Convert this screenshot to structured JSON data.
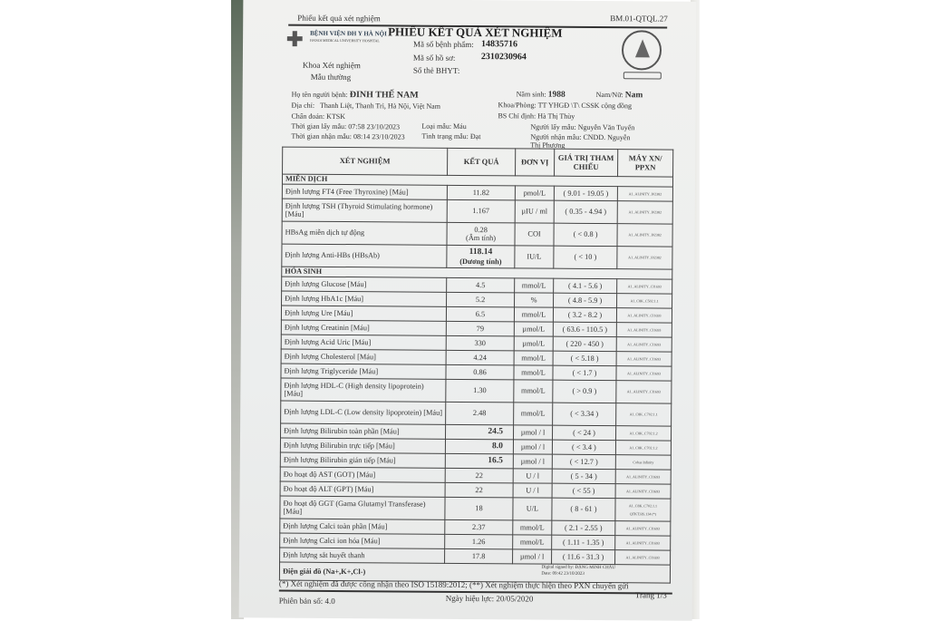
{
  "header": {
    "form_title": "Phiếu kết quả xét nghiệm",
    "form_code": "BM.01-QTQL.27",
    "main_title": "PHIẾU KẾT QUẢ XÉT NGHIỆM"
  },
  "hospital": {
    "name": "BỆNH VIỆN ĐH Y HÀ NỘI",
    "name_en": "HANOI MEDICAL UNIVERSITY HOSPITAL",
    "department": "Khoa Xét nghiệm",
    "sample_type_label": "Mẫu thường"
  },
  "ids": {
    "specimen_label": "Mã số bệnh phẩm:",
    "specimen": "14835716",
    "record_label": "Mã số hồ sơ:",
    "record": "2310230964",
    "insurance_label": "Số thẻ BHYT:",
    "insurance": ""
  },
  "patient": {
    "name_label": "Họ tên người bệnh:",
    "name": "ĐINH THẾ NAM",
    "birth_label": "Năm sinh:",
    "birth": "1988",
    "sex_label": "Nam/Nữ:",
    "sex": "Nam",
    "address_label": "Địa chỉ:",
    "address": "Thanh Liệt, Thanh Trì, Hà Nội, Việt Nam",
    "ward_label": "Khoa/Phòng:",
    "ward": "TT YHGĐ \\T\\ CSSK cộng đồng",
    "diagnosis_label": "Chẩn đoán:",
    "diagnosis": "KTSK",
    "doctor_label": "BS Chỉ định:",
    "doctor": "Hà Thị Thùy",
    "collect_time_label": "Thời gian lấy mẫu:",
    "collect_time": "07:58 23/10/2023",
    "sample_label": "Loại mẫu:",
    "sample": "Máu",
    "collector_label": "Người lấy mẫu:",
    "collector": "Nguyễn Văn Tuyến",
    "receive_time_label": "Thời gian nhận mẫu:",
    "receive_time": "08:14 23/10/2023",
    "status_label": "Tình trạng mẫu:",
    "status": "Đạt",
    "receiver_label": "Người nhận mẫu:",
    "receiver": "CNDD. Nguyễn Thị Phương"
  },
  "table": {
    "columns": [
      "XÉT NGHIỆM",
      "KẾT QUẢ",
      "ĐƠN VỊ",
      "GIÁ TRỊ THAM CHIẾU",
      "MÁY XN/ PPXN"
    ],
    "sections": [
      {
        "title": "MIỄN DỊCH",
        "rows": [
          {
            "test": "Định lượng FT4 (Free Thyroxine) [Máu]",
            "result": "11.82",
            "unit": "pmol/L",
            "ref": "( 9.01 - 19.05 )",
            "machine": "A1_ALINITY_I02382"
          },
          {
            "test": "Định lượng TSH (Thyroid Stimulating hormone) [Máu]",
            "result": "1.167",
            "unit": "µIU / ml",
            "ref": "( 0.35 - 4.94 )",
            "machine": "A1_ALINITY_I02382",
            "tall": true
          },
          {
            "test": "HBsAg miễn dịch tự động",
            "result": "0.28",
            "result_note": "(Âm tính)",
            "unit": "COI",
            "ref": "( < 0.8 )",
            "machine": "A1_ALINITY_I02382",
            "tall": true
          },
          {
            "test": "Định lượng Anti-HBs (HBsAb)",
            "result": "118.14",
            "result_note": "(Dương tính)",
            "unit": "IU/L",
            "ref": "( < 10 )",
            "machine": "A1_ALINITY_I02382",
            "tall": true,
            "bold": true
          }
        ]
      },
      {
        "title": "HÓA SINH",
        "rows": [
          {
            "test": "Định lượng Glucose [Máu]",
            "result": "4.5",
            "unit": "mmol/L",
            "ref": "( 4.1 - 5.6 )",
            "machine": "A1_ALINITY_CI1693"
          },
          {
            "test": "Định lượng HbA1c [Máu]",
            "result": "5.2",
            "unit": "%",
            "ref": "( 4.8 - 5.9 )",
            "machine": "A1_C8K_C502.1.1"
          },
          {
            "test": "Định lượng Ure [Máu]",
            "result": "6.5",
            "unit": "mmol/L",
            "ref": "( 3.2 - 8.2 )",
            "machine": "A1_ALINITY_CI1693"
          },
          {
            "test": "Định lượng Creatinin [Máu]",
            "result": "79",
            "unit": "µmol/L",
            "ref": "( 63.6 - 110.5 )",
            "machine": "A1_ALINITY_CI1693"
          },
          {
            "test": "Định lượng Acid Uric [Máu]",
            "result": "330",
            "unit": "µmol/L",
            "ref": "( 220 - 450 )",
            "machine": "A1_ALINITY_CI1693"
          },
          {
            "test": "Định lượng Cholesterol [Máu]",
            "result": "4.24",
            "unit": "mmol/L",
            "ref": "( < 5.18 )",
            "machine": "A1_ALINITY_CI1693"
          },
          {
            "test": "Định lượng Triglyceride [Máu]",
            "result": "0.86",
            "unit": "mmol/L",
            "ref": "( < 1.7 )",
            "machine": "A1_ALINITY_CI1693"
          },
          {
            "test": "Định lượng HDL-C (High density lipoprotein) [Máu]",
            "result": "1.30",
            "unit": "mmol/L",
            "ref": "( > 0.9 )",
            "machine": "A1_ALINITY_CI1693",
            "tall": true
          },
          {
            "test": "Định lượng LDL-C (Low density lipoprotein) [Máu]",
            "result": "2.48",
            "unit": "mmol/L",
            "ref": "( < 3.34 )",
            "machine": "A1_C8K_C702.1.1",
            "tall": true
          },
          {
            "test": "Định lượng Bilirubin toàn phần [Máu]",
            "result": "24.5",
            "unit": "µmol / l",
            "ref": "( < 24 )",
            "machine": "A1_C8K_C702.1.2",
            "bold": true
          },
          {
            "test": "Định lượng Bilirubin trực tiếp [Máu]",
            "result": "8.0",
            "unit": "µmol / l",
            "ref": "( < 3.4 )",
            "machine": "A1_C8K_C702.1.2",
            "bold": true
          },
          {
            "test": "Định lượng Bilirubin gián tiếp [Máu]",
            "result": "16.5",
            "unit": "µmol / l",
            "ref": "( < 12.7 )",
            "machine": "Cobas Infinity",
            "bold": true
          },
          {
            "test": "Đo hoạt độ AST (GOT) [Máu]",
            "result": "22",
            "unit": "U / l",
            "ref": "( 5 - 34 )",
            "machine": "A1_ALINITY_CI1693"
          },
          {
            "test": "Đo hoạt độ ALT (GPT) [Máu]",
            "result": "22",
            "unit": "U / l",
            "ref": "( < 55 )",
            "machine": "A1_ALINITY_CI1693"
          },
          {
            "test": "Đo hoạt độ GGT (Gama Glutamyl Transferase) [Máu]",
            "result": "18",
            "unit": "U/L",
            "ref": "( 8 - 61 )",
            "machine": "A1_C8K_C702.1.1 QTKT.HS.134 (*)",
            "tall": true
          },
          {
            "test": "Định lượng Calci toàn phần [Máu]",
            "result": "2.37",
            "unit": "mmol/L",
            "ref": "( 2.1 - 2.55 )",
            "machine": "A1_ALINITY_CI1693"
          },
          {
            "test": "Định lượng Calci ion hóa [Máu]",
            "result": "1.26",
            "unit": "mmol/L",
            "ref": "( 1.11 - 1.35 )",
            "machine": "A1_ALINITY_CI1693"
          },
          {
            "test": "Định lượng sắt huyết thanh",
            "result": "17.8",
            "unit": "µmol / l",
            "ref": "( 11.6 - 31.3 )",
            "machine": "A1_ALINITY_CI1693"
          }
        ]
      }
    ],
    "last_section": "Điện giải đồ (Na+,K+,Cl-)",
    "signature": "Digital signed by: ĐẶNG MINH CHÂU",
    "signature_date": "Date: 09:42 23/10/2023"
  },
  "footer": {
    "note": "(*) Xét nghiệm đã được công nhận theo ISO 15189:2012; (**) Xét nghiệm thực hiện theo PXN chuyển gửi",
    "version": "Phiên bản số: 4.0",
    "effective": "Ngày hiệu lực: 20/05/2020",
    "page": "Trang 1/3"
  }
}
